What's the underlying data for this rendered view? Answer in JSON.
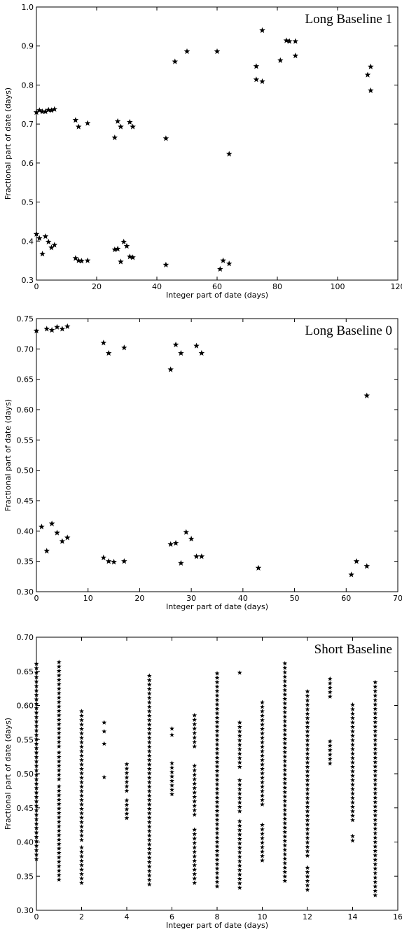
{
  "chart_data": [
    {
      "type": "scatter",
      "title": "Long Baseline 1",
      "xlabel": "Integer part of date (days)",
      "ylabel": "Fractional part of date (days)",
      "xlim": [
        0,
        120
      ],
      "ylim": [
        0.3,
        1.0
      ],
      "xticks": [
        0,
        20,
        40,
        60,
        80,
        100,
        120
      ],
      "yticks": [
        0.3,
        0.4,
        0.5,
        0.6,
        0.7,
        0.8,
        0.9,
        1.0
      ],
      "ytick_decimals": 1,
      "grid": false,
      "points": [
        [
          0,
          0.73
        ],
        [
          1,
          0.735
        ],
        [
          2,
          0.732
        ],
        [
          3,
          0.732
        ],
        [
          4,
          0.736
        ],
        [
          5,
          0.735
        ],
        [
          6,
          0.738
        ],
        [
          13,
          0.71
        ],
        [
          14,
          0.693
        ],
        [
          17,
          0.702
        ],
        [
          26,
          0.665
        ],
        [
          27,
          0.707
        ],
        [
          28,
          0.693
        ],
        [
          31,
          0.705
        ],
        [
          32,
          0.693
        ],
        [
          43,
          0.663
        ],
        [
          64,
          0.623
        ],
        [
          0,
          0.418
        ],
        [
          1,
          0.407
        ],
        [
          2,
          0.367
        ],
        [
          3,
          0.412
        ],
        [
          4,
          0.398
        ],
        [
          5,
          0.383
        ],
        [
          6,
          0.39
        ],
        [
          13,
          0.356
        ],
        [
          14,
          0.35
        ],
        [
          15,
          0.349
        ],
        [
          17,
          0.35
        ],
        [
          26,
          0.378
        ],
        [
          27,
          0.38
        ],
        [
          28,
          0.347
        ],
        [
          29,
          0.398
        ],
        [
          30,
          0.387
        ],
        [
          31,
          0.36
        ],
        [
          32,
          0.358
        ],
        [
          43,
          0.339
        ],
        [
          61,
          0.328
        ],
        [
          62,
          0.35
        ],
        [
          64,
          0.342
        ],
        [
          46,
          0.86
        ],
        [
          50,
          0.886
        ],
        [
          60,
          0.886
        ],
        [
          73,
          0.848
        ],
        [
          73,
          0.814
        ],
        [
          75,
          0.94
        ],
        [
          75,
          0.809
        ],
        [
          81,
          0.863
        ],
        [
          83,
          0.914
        ],
        [
          84,
          0.912
        ],
        [
          86,
          0.912
        ],
        [
          86,
          0.875
        ],
        [
          110,
          0.826
        ],
        [
          111,
          0.847
        ],
        [
          111,
          0.786
        ]
      ]
    },
    {
      "type": "scatter",
      "title": "Long Baseline 0",
      "xlabel": "Integer part of date (days)",
      "ylabel": "Fractional part of date (days)",
      "xlim": [
        0,
        70
      ],
      "ylim": [
        0.3,
        0.75
      ],
      "xticks": [
        0,
        10,
        20,
        30,
        40,
        50,
        60,
        70
      ],
      "yticks": [
        0.3,
        0.35,
        0.4,
        0.45,
        0.5,
        0.55,
        0.6,
        0.65,
        0.7,
        0.75
      ],
      "ytick_decimals": 2,
      "grid": false,
      "points": [
        [
          0,
          0.73
        ],
        [
          2,
          0.733
        ],
        [
          3,
          0.731
        ],
        [
          4,
          0.736
        ],
        [
          5,
          0.733
        ],
        [
          6,
          0.737
        ],
        [
          13,
          0.71
        ],
        [
          14,
          0.693
        ],
        [
          17,
          0.702
        ],
        [
          26,
          0.666
        ],
        [
          27,
          0.707
        ],
        [
          28,
          0.693
        ],
        [
          31,
          0.705
        ],
        [
          32,
          0.693
        ],
        [
          64,
          0.623
        ],
        [
          1,
          0.407
        ],
        [
          2,
          0.367
        ],
        [
          3,
          0.412
        ],
        [
          4,
          0.397
        ],
        [
          5,
          0.383
        ],
        [
          6,
          0.389
        ],
        [
          13,
          0.356
        ],
        [
          14,
          0.35
        ],
        [
          15,
          0.349
        ],
        [
          17,
          0.35
        ],
        [
          26,
          0.378
        ],
        [
          27,
          0.38
        ],
        [
          28,
          0.347
        ],
        [
          29,
          0.398
        ],
        [
          30,
          0.387
        ],
        [
          31,
          0.358
        ],
        [
          32,
          0.358
        ],
        [
          43,
          0.339
        ],
        [
          61,
          0.328
        ],
        [
          62,
          0.35
        ],
        [
          64,
          0.342
        ]
      ]
    },
    {
      "type": "scatter",
      "title": "Short Baseline",
      "xlabel": "Integer part of date (days)",
      "ylabel": "Fractional part of date (days)",
      "xlim": [
        0,
        16
      ],
      "ylim": [
        0.3,
        0.7
      ],
      "xticks": [
        0,
        2,
        4,
        6,
        8,
        10,
        12,
        14,
        16
      ],
      "yticks": [
        0.3,
        0.35,
        0.4,
        0.45,
        0.5,
        0.55,
        0.6,
        0.65,
        0.7
      ],
      "ytick_decimals": 2,
      "grid": false,
      "columns": [
        {
          "x": 0,
          "segments": [
            [
              0.375,
              0.665
            ]
          ]
        },
        {
          "x": 1,
          "segments": [
            [
              0.345,
              0.482
            ],
            [
              0.492,
              0.533
            ],
            [
              0.54,
              0.665
            ]
          ]
        },
        {
          "x": 2,
          "segments": [
            [
              0.34,
              0.392
            ],
            [
              0.403,
              0.595
            ]
          ]
        },
        {
          "x": 3,
          "points": [
            0.495,
            0.544,
            0.562,
            0.575
          ]
        },
        {
          "x": 4,
          "segments": [
            [
              0.435,
              0.465
            ],
            [
              0.475,
              0.518
            ]
          ]
        },
        {
          "x": 5,
          "segments": [
            [
              0.338,
              0.645
            ]
          ]
        },
        {
          "x": 6,
          "segments": [
            [
              0.47,
              0.518
            ]
          ],
          "points": [
            0.557,
            0.566
          ]
        },
        {
          "x": 7,
          "segments": [
            [
              0.34,
              0.42
            ],
            [
              0.44,
              0.512
            ],
            [
              0.54,
              0.587
            ]
          ]
        },
        {
          "x": 8,
          "segments": [
            [
              0.335,
              0.65
            ]
          ]
        },
        {
          "x": 9,
          "segments": [
            [
              0.333,
              0.432
            ],
            [
              0.445,
              0.495
            ],
            [
              0.51,
              0.577
            ]
          ],
          "points": [
            0.648
          ]
        },
        {
          "x": 10,
          "segments": [
            [
              0.373,
              0.427
            ],
            [
              0.455,
              0.607
            ]
          ]
        },
        {
          "x": 11,
          "segments": [
            [
              0.343,
              0.663
            ]
          ]
        },
        {
          "x": 12,
          "segments": [
            [
              0.33,
              0.363
            ],
            [
              0.38,
              0.625
            ]
          ]
        },
        {
          "x": 13,
          "segments": [
            [
              0.515,
              0.548
            ],
            [
              0.613,
              0.645
            ]
          ]
        },
        {
          "x": 14,
          "segments": [
            [
              0.402,
              0.414
            ],
            [
              0.432,
              0.607
            ]
          ]
        },
        {
          "x": 15,
          "segments": [
            [
              0.322,
              0.636
            ]
          ]
        }
      ]
    }
  ]
}
